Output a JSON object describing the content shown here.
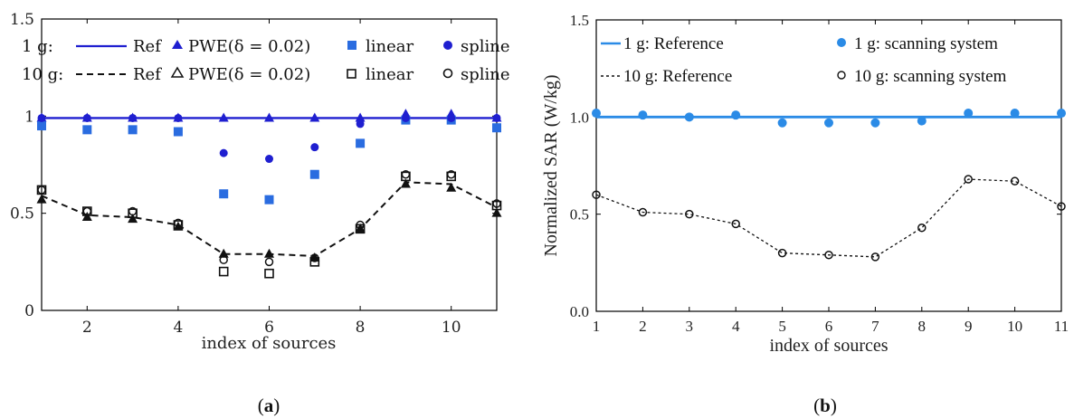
{
  "chart_data": [
    {
      "type": "line",
      "sublabel_pre": "(",
      "sublabel": "a",
      "sublabel_post": ")",
      "xlabel": "index of sources",
      "ylabel": "",
      "xlim": [
        1,
        11
      ],
      "ylim": [
        0,
        1.5
      ],
      "xticks": [
        "2",
        "4",
        "6",
        "8",
        "10"
      ],
      "xtick_values": [
        2,
        4,
        6,
        8,
        10
      ],
      "yticks": [
        "0",
        "0.5",
        "1",
        "1.5"
      ],
      "ytick_values": [
        0,
        0.5,
        1,
        1.5
      ],
      "grid": false,
      "legend_placement": "top",
      "x": [
        1,
        2,
        3,
        4,
        5,
        6,
        7,
        8,
        9,
        10,
        11
      ],
      "legend_rows": [
        {
          "group": "1 g:",
          "items": [
            {
              "label": "Ref",
              "marker": "line",
              "series": 0
            },
            {
              "label": "PWE(δ = 0.02)",
              "marker": "triangle",
              "series": 1
            },
            {
              "label": "linear",
              "marker": "square",
              "series": 2
            },
            {
              "label": "spline",
              "marker": "circle",
              "series": 3
            }
          ]
        },
        {
          "group": "10 g:",
          "items": [
            {
              "label": "Ref",
              "marker": "dash",
              "series": 4
            },
            {
              "label": "PWE(δ = 0.02)",
              "marker": "triangle-open",
              "series": 5
            },
            {
              "label": "linear",
              "marker": "square-open",
              "series": 6
            },
            {
              "label": "spline",
              "marker": "circle-open",
              "series": 7
            }
          ]
        }
      ],
      "series": [
        {
          "style": "solid-line",
          "color": "#1f1fd0",
          "values": [
            0.99,
            0.99,
            0.99,
            0.99,
            0.99,
            0.99,
            0.99,
            0.99,
            0.99,
            0.99,
            0.99
          ]
        },
        {
          "style": "triangle-filled",
          "color": "#1f1fd0",
          "values": [
            0.99,
            0.99,
            0.99,
            0.99,
            0.99,
            0.99,
            0.99,
            0.99,
            1.01,
            1.01,
            0.99
          ]
        },
        {
          "style": "square-filled",
          "color": "#2a6ce0",
          "values": [
            0.95,
            0.93,
            0.93,
            0.92,
            0.6,
            0.57,
            0.7,
            0.86,
            0.98,
            0.98,
            0.94
          ]
        },
        {
          "style": "circle-filled",
          "color": "#1f1fd0",
          "values": [
            0.99,
            0.99,
            0.99,
            0.99,
            0.81,
            0.78,
            0.84,
            0.96,
            0.99,
            0.99,
            0.99
          ]
        },
        {
          "style": "dashed-line",
          "color": "#111111",
          "values": [
            0.59,
            0.49,
            0.48,
            0.44,
            0.29,
            0.29,
            0.28,
            0.42,
            0.66,
            0.65,
            0.53
          ]
        },
        {
          "style": "triangle-filled",
          "color": "#111111",
          "values": [
            0.57,
            0.48,
            0.47,
            0.43,
            0.29,
            0.29,
            0.27,
            0.42,
            0.65,
            0.63,
            0.5
          ]
        },
        {
          "style": "square-open",
          "color": "#111111",
          "values": [
            0.62,
            0.51,
            0.5,
            0.44,
            0.2,
            0.19,
            0.25,
            0.42,
            0.69,
            0.69,
            0.54
          ]
        },
        {
          "style": "circle-open",
          "color": "#111111",
          "values": [
            0.62,
            0.51,
            0.51,
            0.45,
            0.26,
            0.25,
            0.27,
            0.44,
            0.7,
            0.7,
            0.55
          ]
        }
      ]
    },
    {
      "type": "line",
      "sublabel_pre": "(",
      "sublabel": "b",
      "sublabel_post": ")",
      "xlabel": "index of sources",
      "ylabel": "Normalized SAR (W/kg)",
      "xlim": [
        1,
        11
      ],
      "ylim": [
        0,
        1.5
      ],
      "xticks": [
        "1",
        "2",
        "3",
        "4",
        "5",
        "6",
        "7",
        "8",
        "9",
        "10",
        "11"
      ],
      "xtick_values": [
        1,
        2,
        3,
        4,
        5,
        6,
        7,
        8,
        9,
        10,
        11
      ],
      "yticks": [
        "0.0",
        "0.5",
        "1.0",
        "1.5"
      ],
      "ytick_values": [
        0,
        0.5,
        1,
        1.5
      ],
      "grid": false,
      "legend_placement": "top",
      "x": [
        1,
        2,
        3,
        4,
        5,
        6,
        7,
        8,
        9,
        10,
        11
      ],
      "legend_items": [
        {
          "label": "1 g: Reference",
          "marker": "line",
          "series": 0
        },
        {
          "label": "1 g: scanning system",
          "marker": "circle",
          "series": 1
        },
        {
          "label": "10 g: Reference",
          "marker": "dash",
          "series": 2
        },
        {
          "label": "10 g: scanning system",
          "marker": "circle-open",
          "series": 3
        }
      ],
      "series": [
        {
          "style": "solid-line",
          "color": "#2b8be6",
          "values": [
            1.0,
            1.0,
            1.0,
            1.0,
            1.0,
            1.0,
            1.0,
            1.0,
            1.0,
            1.0,
            1.0
          ]
        },
        {
          "style": "circle-filled",
          "color": "#2b8be6",
          "values": [
            1.02,
            1.01,
            1.0,
            1.01,
            0.97,
            0.97,
            0.97,
            0.98,
            1.02,
            1.02,
            1.02
          ]
        },
        {
          "style": "dashed-line",
          "color": "#111111",
          "values": [
            0.6,
            0.51,
            0.5,
            0.45,
            0.3,
            0.29,
            0.28,
            0.43,
            0.68,
            0.67,
            0.54
          ]
        },
        {
          "style": "circle-open",
          "color": "#111111",
          "values": [
            0.6,
            0.51,
            0.5,
            0.45,
            0.3,
            0.29,
            0.28,
            0.43,
            0.68,
            0.67,
            0.54
          ]
        }
      ]
    }
  ]
}
